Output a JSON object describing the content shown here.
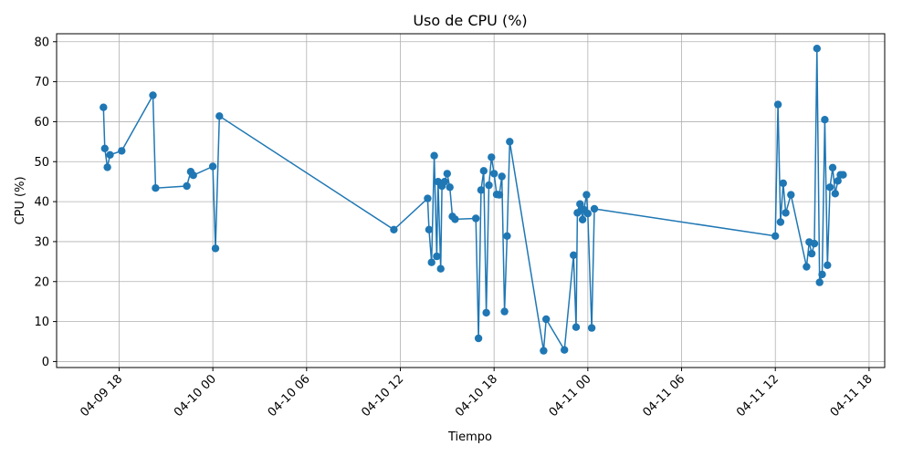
{
  "chart_data": {
    "type": "line",
    "title": "Uso de CPU (%)",
    "xlabel": "Tiempo",
    "ylabel": "CPU (%)",
    "grid": true,
    "color": "#1f77b4",
    "x_ticks": [
      "04-09 18",
      "04-10 00",
      "04-10 06",
      "04-10 12",
      "04-10 18",
      "04-11 00",
      "04-11 06",
      "04-11 12",
      "04-11 18"
    ],
    "y_ticks": [
      0,
      10,
      20,
      30,
      40,
      50,
      60,
      70,
      80
    ],
    "xlim": [
      "2024-04-09 14:00",
      "2024-04-11 19:00"
    ],
    "ylim": [
      -1.5,
      82
    ],
    "series": [
      {
        "x": [
          "2024-04-09 17:00",
          "2024-04-09 17:05",
          "2024-04-09 17:15",
          "2024-04-09 17:25",
          "2024-04-09 18:10",
          "2024-04-09 20:10",
          "2024-04-09 20:20",
          "2024-04-09 22:20",
          "2024-04-09 22:35",
          "2024-04-09 22:45",
          "2024-04-10 00:00",
          "2024-04-10 00:10",
          "2024-04-10 00:25",
          "2024-04-10 11:35",
          "2024-04-10 13:45",
          "2024-04-10 13:50",
          "2024-04-10 14:00",
          "2024-04-10 14:10",
          "2024-04-10 14:20",
          "2024-04-10 14:25",
          "2024-04-10 14:35",
          "2024-04-10 14:40",
          "2024-04-10 14:50",
          "2024-04-10 15:00",
          "2024-04-10 15:10",
          "2024-04-10 15:20",
          "2024-04-10 15:30",
          "2024-04-10 16:50",
          "2024-04-10 17:00",
          "2024-04-10 17:10",
          "2024-04-10 17:20",
          "2024-04-10 17:30",
          "2024-04-10 17:40",
          "2024-04-10 17:50",
          "2024-04-10 18:00",
          "2024-04-10 18:10",
          "2024-04-10 18:20",
          "2024-04-10 18:30",
          "2024-04-10 18:40",
          "2024-04-10 18:50",
          "2024-04-10 19:00",
          "2024-04-10 21:10",
          "2024-04-10 21:20",
          "2024-04-10 22:30",
          "2024-04-10 23:05",
          "2024-04-10 23:15",
          "2024-04-10 23:20",
          "2024-04-10 23:30",
          "2024-04-10 23:35",
          "2024-04-10 23:40",
          "2024-04-10 23:45",
          "2024-04-10 23:55",
          "2024-04-11 00:00",
          "2024-04-11 00:15",
          "2024-04-11 00:25",
          "2024-04-11 12:00",
          "2024-04-11 12:10",
          "2024-04-11 12:20",
          "2024-04-11 12:30",
          "2024-04-11 12:40",
          "2024-04-11 13:00",
          "2024-04-11 14:00",
          "2024-04-11 14:10",
          "2024-04-11 14:20",
          "2024-04-11 14:30",
          "2024-04-11 14:40",
          "2024-04-11 14:50",
          "2024-04-11 15:00",
          "2024-04-11 15:10",
          "2024-04-11 15:20",
          "2024-04-11 15:30",
          "2024-04-11 15:40",
          "2024-04-11 15:50",
          "2024-04-11 16:00",
          "2024-04-11 16:10",
          "2024-04-11 16:20"
        ],
        "y": [
          63.6,
          53.3,
          48.6,
          51.7,
          52.7,
          66.6,
          43.4,
          43.9,
          47.5,
          46.6,
          48.8,
          28.3,
          61.4,
          33.0,
          40.8,
          33.0,
          24.8,
          51.5,
          26.3,
          45.0,
          23.2,
          43.9,
          45.0,
          47.0,
          43.6,
          36.3,
          35.6,
          35.8,
          5.8,
          42.9,
          47.7,
          12.2,
          44.1,
          51.1,
          47.0,
          41.8,
          41.7,
          46.3,
          12.5,
          31.4,
          55.0,
          2.7,
          10.6,
          2.9,
          26.6,
          8.6,
          37.2,
          39.4,
          38.1,
          35.5,
          38.0,
          41.7,
          37.0,
          8.4,
          38.2,
          31.4,
          64.3,
          34.9,
          44.6,
          37.2,
          41.7,
          23.7,
          29.9,
          27.0,
          29.5,
          78.3,
          19.8,
          21.8,
          60.5,
          24.1,
          43.6,
          48.5,
          42.0,
          45.2,
          46.7,
          46.7
        ]
      }
    ]
  }
}
